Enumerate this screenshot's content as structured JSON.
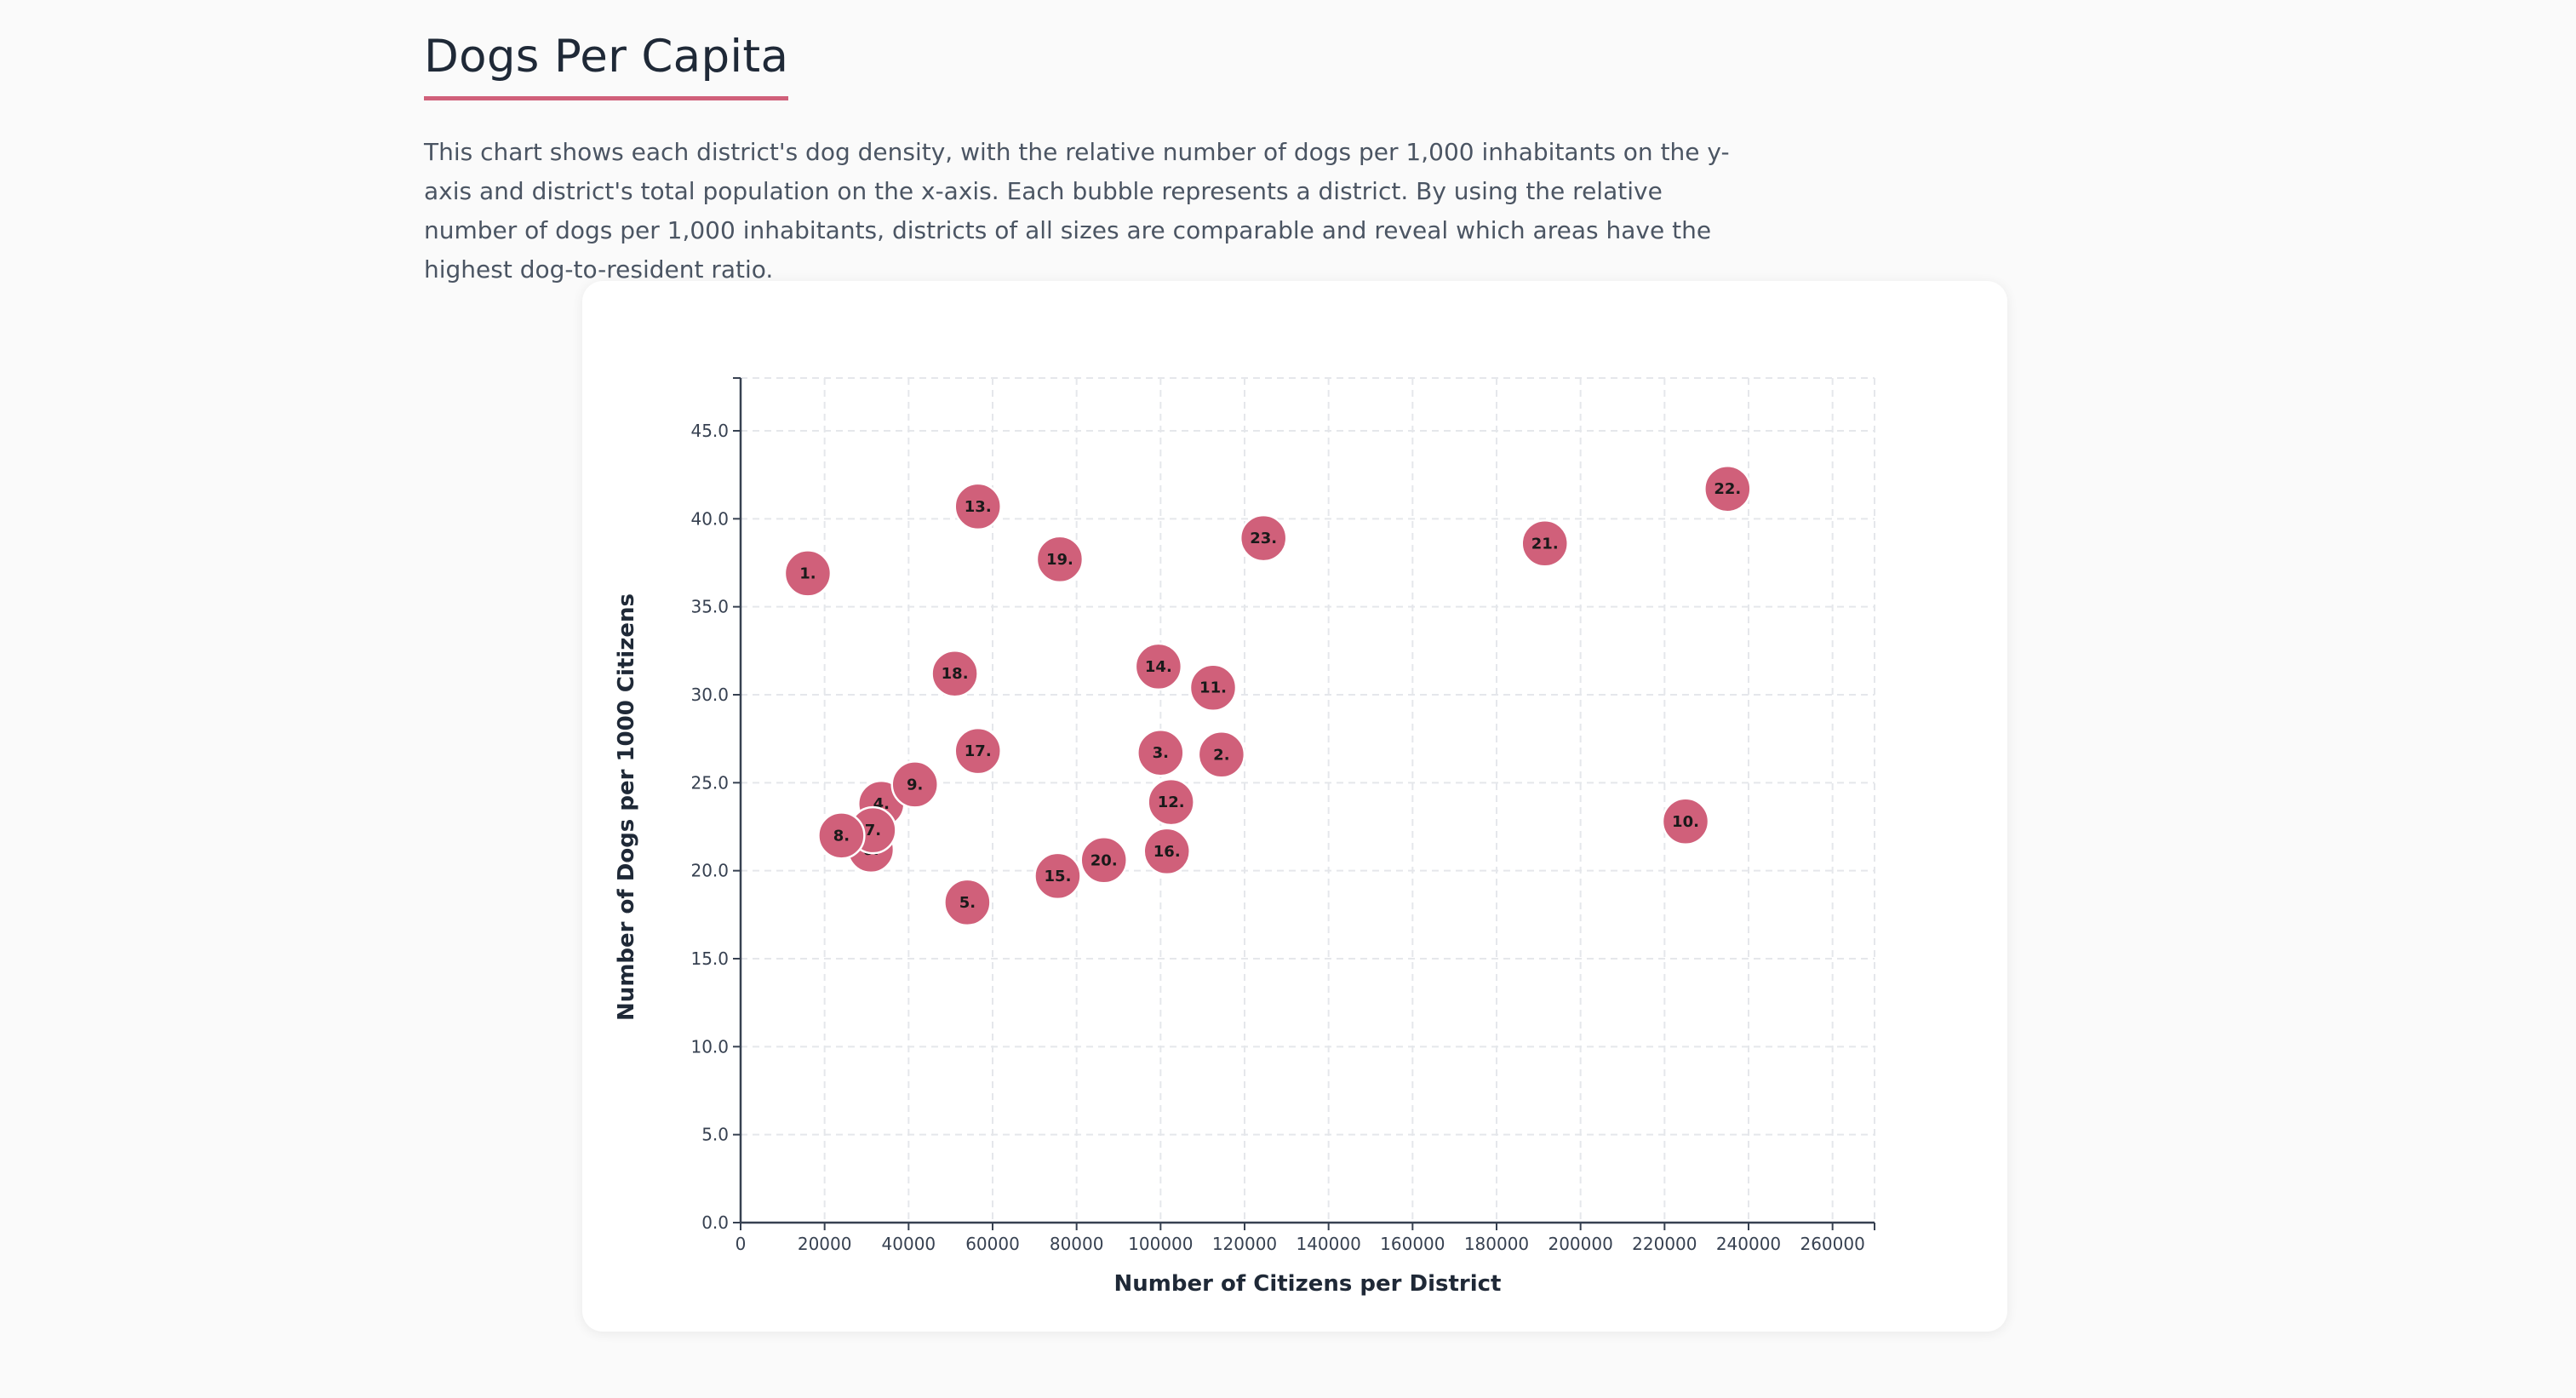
{
  "header": {
    "title": "Dogs Per Capita",
    "description": "This chart shows each district's dog density, with the relative number of dogs per 1,000 inhabitants on the y-axis and district's total population on the x-axis. Each bubble represents a district. By using the relative number of dogs per 1,000 inhabitants, districts of all sizes are comparable and reveal which areas have the highest dog-to-resident ratio."
  },
  "colors": {
    "bubble": "#d0607a",
    "accent": "#d0607a",
    "grid": "#e5e7eb",
    "axis": "#374151"
  },
  "chart_data": {
    "type": "scatter",
    "xlabel": "Number of Citizens per District",
    "ylabel": "Number of Dogs per 1000 Citizens",
    "xlim": [
      0,
      270000
    ],
    "ylim": [
      0,
      48
    ],
    "x_ticks": [
      "0",
      "20000",
      "40000",
      "60000",
      "80000",
      "100000",
      "120000",
      "140000",
      "160000",
      "180000",
      "200000",
      "220000",
      "240000",
      "260000"
    ],
    "y_ticks": [
      "0.0",
      "5.0",
      "10.0",
      "15.0",
      "20.0",
      "25.0",
      "30.0",
      "35.0",
      "40.0",
      "45.0"
    ],
    "grid": true,
    "points": [
      {
        "label": "1.",
        "x": 16000,
        "y": 36.9
      },
      {
        "label": "2.",
        "x": 114500,
        "y": 26.6
      },
      {
        "label": "3.",
        "x": 100000,
        "y": 26.7
      },
      {
        "label": "4.",
        "x": 33500,
        "y": 23.8
      },
      {
        "label": "5.",
        "x": 54000,
        "y": 18.2
      },
      {
        "label": "6.",
        "x": 31000,
        "y": 21.2
      },
      {
        "label": "7.",
        "x": 31500,
        "y": 22.3
      },
      {
        "label": "8.",
        "x": 24000,
        "y": 22.0
      },
      {
        "label": "9.",
        "x": 41500,
        "y": 24.9
      },
      {
        "label": "10.",
        "x": 225000,
        "y": 22.8
      },
      {
        "label": "11.",
        "x": 112500,
        "y": 30.4
      },
      {
        "label": "12.",
        "x": 102500,
        "y": 23.9
      },
      {
        "label": "13.",
        "x": 56500,
        "y": 40.7
      },
      {
        "label": "14.",
        "x": 99500,
        "y": 31.6
      },
      {
        "label": "15.",
        "x": 75500,
        "y": 19.7
      },
      {
        "label": "16.",
        "x": 101500,
        "y": 21.1
      },
      {
        "label": "17.",
        "x": 56500,
        "y": 26.8
      },
      {
        "label": "18.",
        "x": 51000,
        "y": 31.2
      },
      {
        "label": "19.",
        "x": 76000,
        "y": 37.7
      },
      {
        "label": "20.",
        "x": 86500,
        "y": 20.6
      },
      {
        "label": "21.",
        "x": 191500,
        "y": 38.6
      },
      {
        "label": "22.",
        "x": 235000,
        "y": 41.7
      },
      {
        "label": "23.",
        "x": 124500,
        "y": 38.9
      }
    ]
  }
}
